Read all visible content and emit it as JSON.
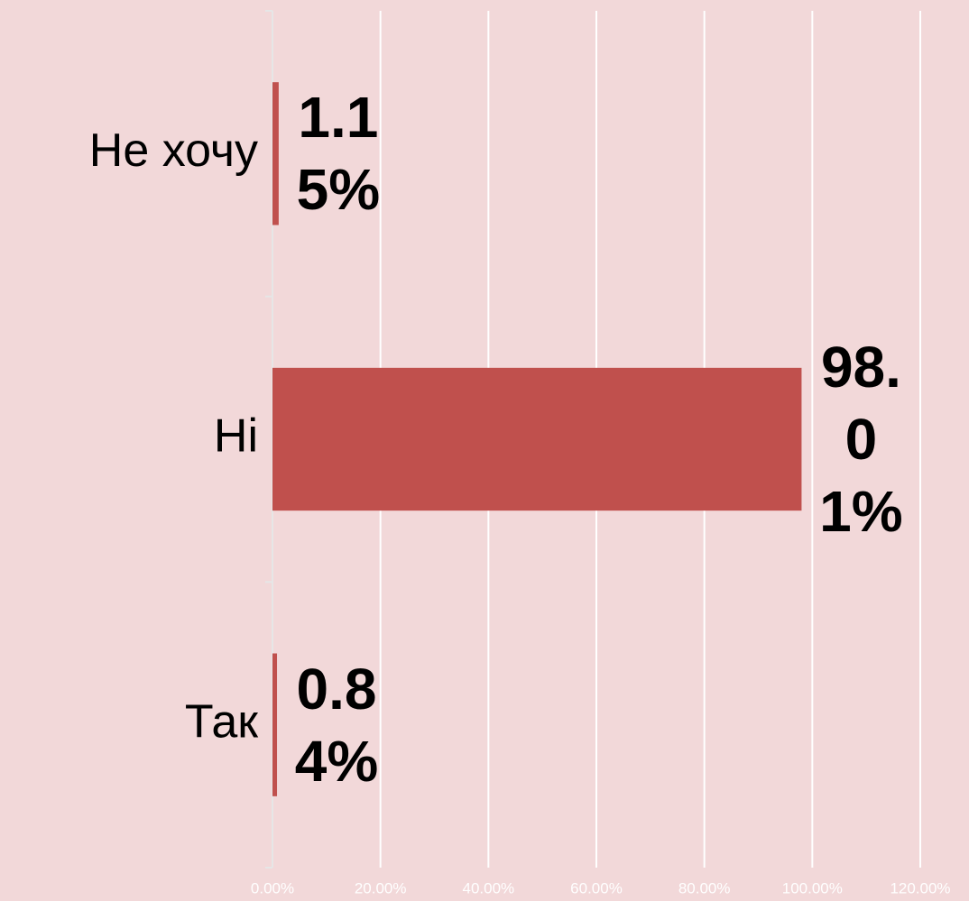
{
  "chart_data": {
    "type": "bar",
    "orientation": "horizontal",
    "categories": [
      "Не хочу",
      "Ні",
      "Так"
    ],
    "values": [
      1.15,
      98.01,
      0.84
    ],
    "value_labels": [
      "1.15%",
      "98.01%",
      "0.84%"
    ],
    "color": "#c0504d",
    "xlim": [
      0,
      120
    ],
    "xticks": [
      {
        "value": 0,
        "label": "0.00%"
      },
      {
        "value": 20,
        "label": "20.00%"
      },
      {
        "value": 40,
        "label": "40.00%"
      },
      {
        "value": 60,
        "label": "60.00%"
      },
      {
        "value": 80,
        "label": "80.00%"
      },
      {
        "value": 100,
        "label": "100.00%"
      },
      {
        "value": 120,
        "label": "120.00%"
      }
    ],
    "grid": true
  }
}
